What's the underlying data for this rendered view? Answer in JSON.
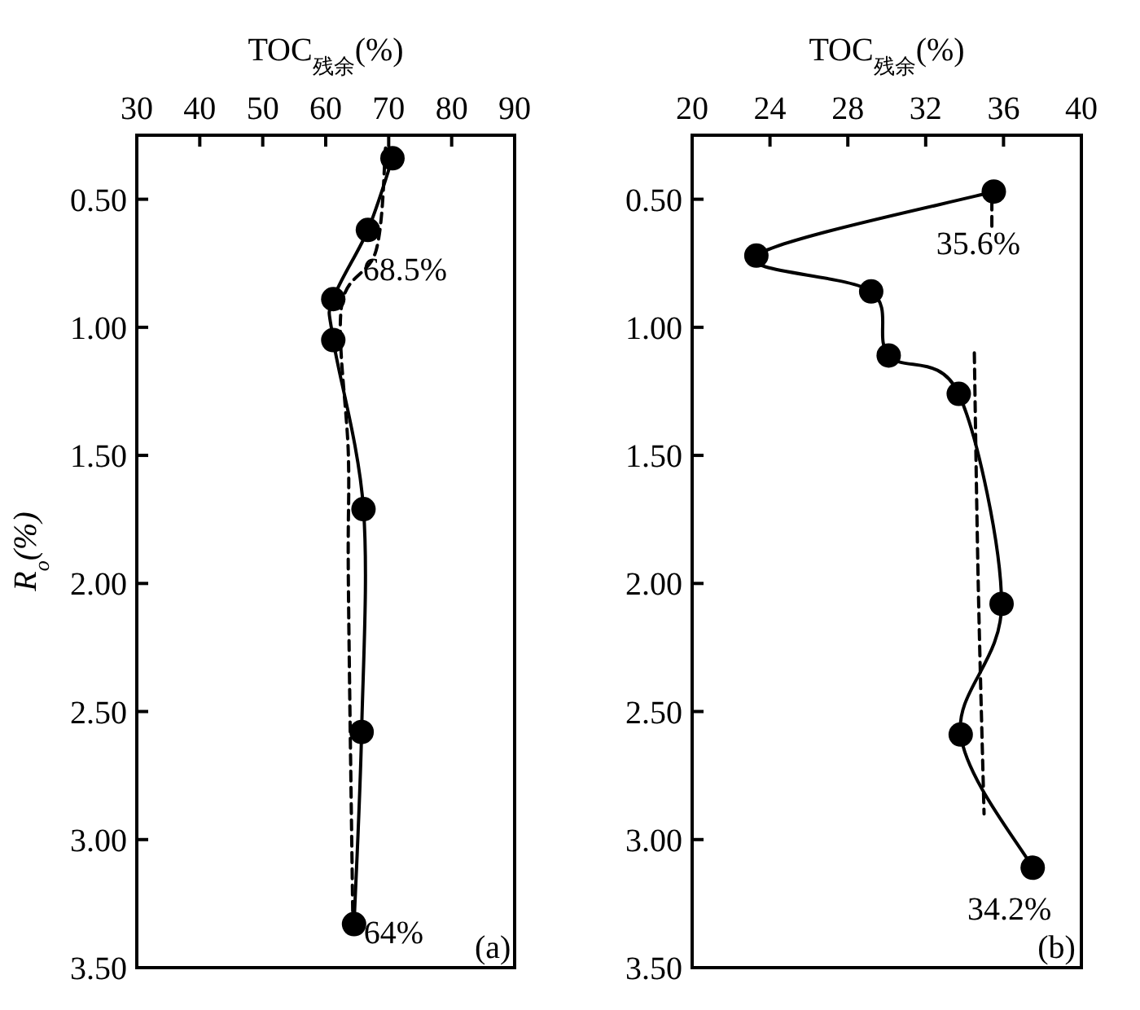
{
  "chart_data": [
    {
      "type": "line",
      "xlabel": "TOC$_{残余}$(%)",
      "ylabel": "R$_{o}$(%)",
      "xlim": [
        30,
        90
      ],
      "xticks": [
        30,
        40,
        50,
        60,
        70,
        80,
        90
      ],
      "ylim": [
        3.5,
        0.25
      ],
      "yticks": [
        {
          "value": 0.5,
          "label": "0.50"
        },
        {
          "value": 1,
          "label": "1.00"
        },
        {
          "value": 1.5,
          "label": "1.50"
        },
        {
          "value": 2,
          "label": "2.00"
        },
        {
          "value": 2.5,
          "label": "2.50"
        },
        {
          "value": 3,
          "label": "3.00"
        },
        {
          "value": 3.5,
          "label": "3.50"
        }
      ],
      "series": [
        {
          "color": "#000000",
          "marker": "circle",
          "line_style": "solid",
          "x": [
            70.6,
            66.7,
            61.2,
            61.2,
            66.0,
            65.7,
            64.5
          ],
          "values": [
            0.34,
            0.62,
            0.89,
            1.05,
            1.71,
            2.58,
            3.33
          ]
        },
        {
          "color": "#000000",
          "marker": "none",
          "line_style": "dashed",
          "x": [
            69.5,
            68.0,
            62.5,
            63.6,
            63.6,
            64.3
          ],
          "values": [
            0.3,
            0.7,
            0.92,
            1.5,
            2.0,
            3.3
          ]
        }
      ],
      "annotations": [
        "68.5%",
        "64%",
        "(a)"
      ]
    },
    {
      "type": "line",
      "xlabel": "TOC$_{残余}$(%)",
      "xlim": [
        20,
        40
      ],
      "xticks": [
        20,
        24,
        28,
        32,
        36,
        40
      ],
      "ylim": [
        3.5,
        0.25
      ],
      "yticks": [
        {
          "value": 0.5,
          "label": "0.50"
        },
        {
          "value": 1,
          "label": "1.00"
        },
        {
          "value": 1.5,
          "label": "1.50"
        },
        {
          "value": 2,
          "label": "2.00"
        },
        {
          "value": 2.5,
          "label": "2.50"
        },
        {
          "value": 3,
          "label": "3.00"
        },
        {
          "value": 3.5,
          "label": "3.50"
        }
      ],
      "series": [
        {
          "color": "#000000",
          "marker": "circle",
          "line_style": "solid",
          "x": [
            35.5,
            23.3,
            29.2,
            30.1,
            33.7,
            35.9,
            33.8,
            37.5
          ],
          "values": [
            0.47,
            0.72,
            0.86,
            1.11,
            1.26,
            2.08,
            2.59,
            3.11
          ]
        },
        {
          "color": "#000000",
          "marker": "none",
          "line_style": "dashed",
          "x": [
            35.4,
            35.4
          ],
          "values": [
            0.44,
            0.62
          ]
        },
        {
          "color": "#000000",
          "marker": "none",
          "line_style": "dashed",
          "x": [
            34.5,
            34.7,
            35.0
          ],
          "values": [
            1.1,
            2.0,
            2.9
          ]
        }
      ],
      "annotations": [
        "35.6%",
        "34.2%",
        "(b)"
      ]
    }
  ]
}
